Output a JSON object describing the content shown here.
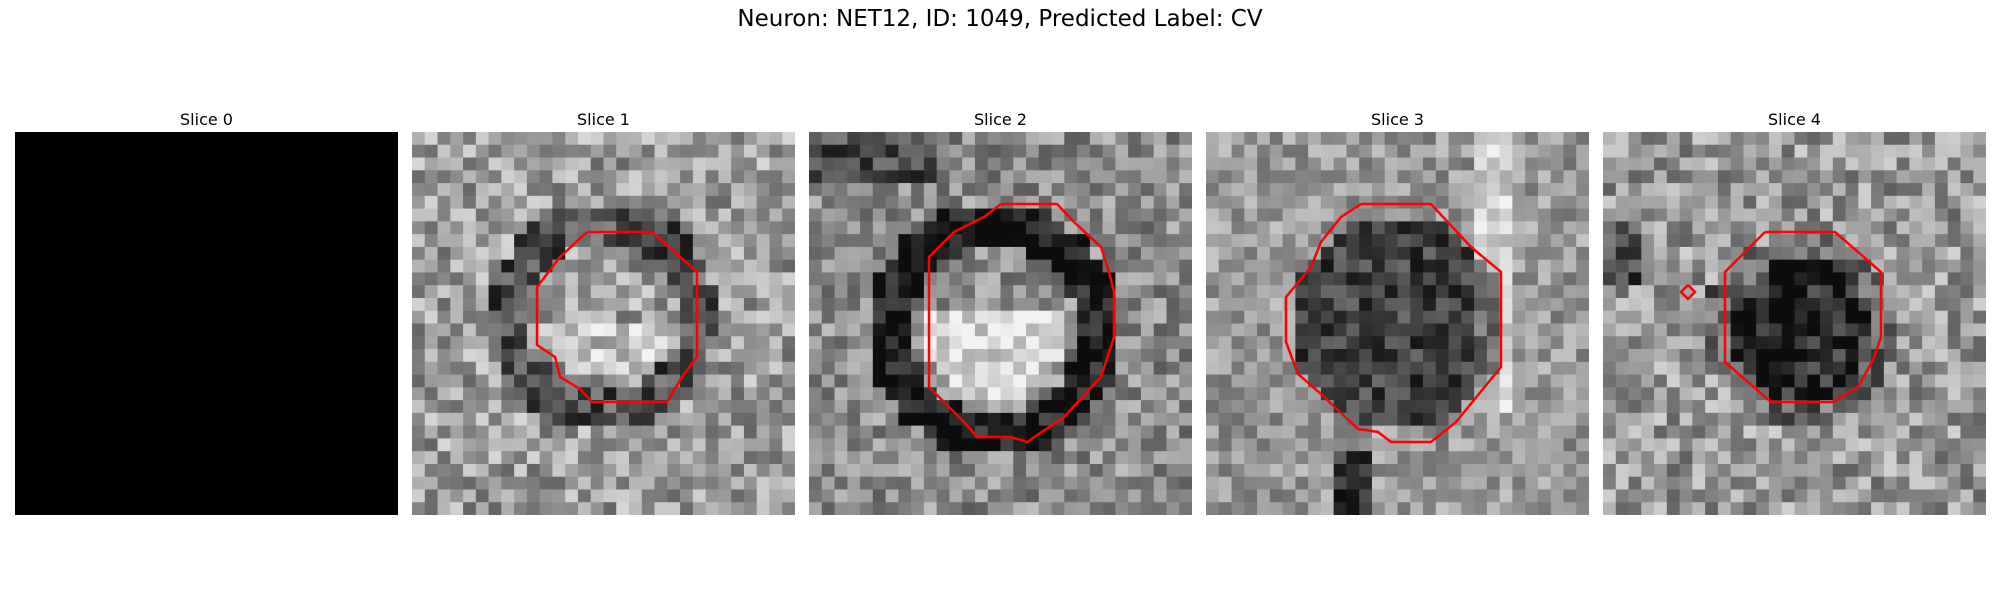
{
  "figure": {
    "title": "Neuron: NET12, ID: 1049, Predicted Label: CV"
  },
  "panels": [
    {
      "title": "Slice 0",
      "image": "blank-black-slice",
      "contours": []
    },
    {
      "title": "Slice 1",
      "image": "grayscale-microscopy-slice",
      "contours": [
        "red-octagon-contour"
      ]
    },
    {
      "title": "Slice 2",
      "image": "grayscale-microscopy-slice",
      "contours": [
        "red-octagon-contour"
      ]
    },
    {
      "title": "Slice 3",
      "image": "grayscale-microscopy-slice",
      "contours": [
        "red-octagon-contour"
      ]
    },
    {
      "title": "Slice 4",
      "image": "grayscale-microscopy-slice",
      "contours": [
        "red-octagon-contour",
        "small-red-diamond-contour"
      ]
    }
  ],
  "colors": {
    "contour": "#ff0000",
    "background": "#ffffff",
    "blank_slice": "#000000"
  }
}
